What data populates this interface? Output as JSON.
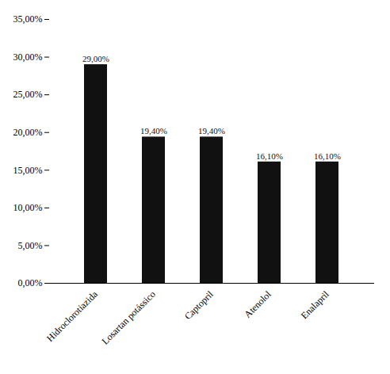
{
  "chart_data": {
    "type": "bar",
    "categories": [
      "Hidroclorotiazida",
      "Losartan potássico",
      "Captopril",
      "Atenolol",
      "Enalapril"
    ],
    "values": [
      29.0,
      19.4,
      19.4,
      16.1,
      16.1
    ],
    "value_labels": [
      "29,00%",
      "19,40%",
      "19,40%",
      "16,10%",
      "16,10%"
    ],
    "data_labels": true,
    "color": "#111111",
    "ylim": [
      0,
      35
    ],
    "yticks": [
      {
        "value": 0,
        "label": "0,00%"
      },
      {
        "value": 5,
        "label": "5,00%"
      },
      {
        "value": 10,
        "label": "10,00%"
      },
      {
        "value": 15,
        "label": "15,00%"
      },
      {
        "value": 20,
        "label": "20,00%"
      },
      {
        "value": 25,
        "label": "25,00%"
      },
      {
        "value": 30,
        "label": "30,00%"
      },
      {
        "value": 35,
        "label": "35,00%"
      }
    ],
    "grid": false
  }
}
